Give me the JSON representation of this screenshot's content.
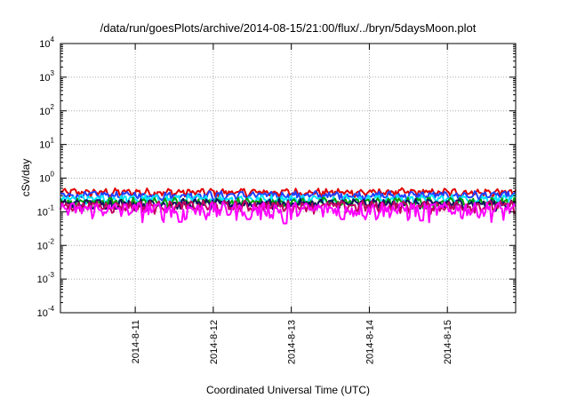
{
  "chart_data": {
    "type": "line",
    "title": "/data/run/goesPlots/archive/2014-08-15/21:00/flux/../bryn/5daysMoon.plot",
    "xlabel": "Coordinated Universal Time (UTC)",
    "ylabel": "cSv/day",
    "yscale": "log",
    "ylim": [
      0.0001,
      10000
    ],
    "xlim": [
      "2014-08-10T01:00",
      "2014-08-15T21:00"
    ],
    "grid": true,
    "legend": "none",
    "x_ticks": [
      "2014-08-11",
      "2014-08-12",
      "2014-08-13",
      "2014-08-14",
      "2014-08-15"
    ],
    "x_tick_labels": [
      "2014-8-11",
      "2014-8-12",
      "2014-8-13",
      "2014-8-14",
      "2014-8-15"
    ],
    "y_ticks": [
      {
        "value": 0.0001,
        "base": "10",
        "exp": "-4"
      },
      {
        "value": 0.001,
        "base": "10",
        "exp": "-3"
      },
      {
        "value": 0.01,
        "base": "10",
        "exp": "-2"
      },
      {
        "value": 0.1,
        "base": "10",
        "exp": "-1"
      },
      {
        "value": 1,
        "base": "10",
        "exp": "0"
      },
      {
        "value": 10,
        "base": "10",
        "exp": "1"
      },
      {
        "value": 100,
        "base": "10",
        "exp": "2"
      },
      {
        "value": 1000,
        "base": "10",
        "exp": "3"
      },
      {
        "value": 10000,
        "base": "10",
        "exp": "4"
      }
    ],
    "series": [
      {
        "color": "#e00000",
        "level": 0.38,
        "variability": 0.07,
        "dips": []
      },
      {
        "color": "#2040ff",
        "level": 0.31,
        "variability": 0.06,
        "dips": []
      },
      {
        "color": "#00e5ff",
        "level": 0.24,
        "variability": 0.05,
        "dips": []
      },
      {
        "color": "#00a000",
        "level": 0.195,
        "variability": 0.04,
        "dips": []
      },
      {
        "color": "#101060",
        "level": 0.175,
        "variability": 0.04,
        "dips": []
      },
      {
        "color": "#c00060",
        "level": 0.15,
        "variability": 0.04,
        "dips": []
      },
      {
        "color": "#ff00ff",
        "level": 0.12,
        "variability": 0.05,
        "dips": [
          {
            "x": "2014-08-11T14:00",
            "y": 0.05
          },
          {
            "x": "2014-08-12T11:00",
            "y": 0.06
          },
          {
            "x": "2014-08-12T22:00",
            "y": 0.045
          },
          {
            "x": "2014-08-13T16:00",
            "y": 0.06
          },
          {
            "x": "2014-08-14T16:00",
            "y": 0.055
          }
        ]
      }
    ]
  }
}
